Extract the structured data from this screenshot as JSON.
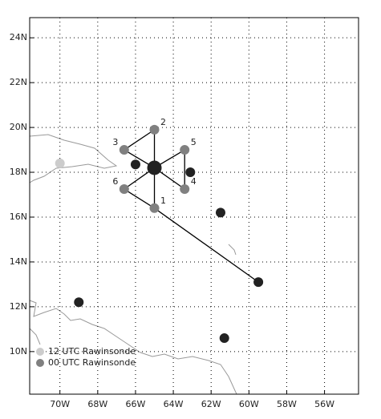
{
  "chart_data": {
    "type": "scatter",
    "xlim": [
      -71.6,
      -54.2
    ],
    "ylim": [
      8.1,
      24.9
    ],
    "xticks": [
      {
        "value": -70,
        "label": "70W"
      },
      {
        "value": -68,
        "label": "68W"
      },
      {
        "value": -66,
        "label": "66W"
      },
      {
        "value": -64,
        "label": "64W"
      },
      {
        "value": -62,
        "label": "62W"
      },
      {
        "value": -60,
        "label": "60W"
      },
      {
        "value": -58,
        "label": "58W"
      },
      {
        "value": -56,
        "label": "56W"
      }
    ],
    "yticks": [
      {
        "value": 10,
        "label": "10N"
      },
      {
        "value": 12,
        "label": "12N"
      },
      {
        "value": 14,
        "label": "14N"
      },
      {
        "value": 16,
        "label": "16N"
      },
      {
        "value": 18,
        "label": "18N"
      },
      {
        "value": 20,
        "label": "20N"
      },
      {
        "value": 22,
        "label": "22N"
      },
      {
        "value": 24,
        "label": "24N"
      }
    ],
    "grid": true,
    "legend": "lower left",
    "series": [
      {
        "name": "12 UTC Rawinsonde",
        "color": "#cccccc",
        "x": [
          -70.0
        ],
        "values": [
          18.4
        ]
      },
      {
        "name": "00 UTC Rawinsonde",
        "color": "#808080",
        "labels": [
          "1",
          "2",
          "3",
          "4",
          "5",
          "6"
        ],
        "x": [
          -65.0,
          -65.0,
          -66.6,
          -63.4,
          -63.4,
          -66.6
        ],
        "values": [
          16.4,
          19.9,
          19.0,
          17.25,
          19.0,
          17.25
        ]
      },
      {
        "color": "#222222",
        "x": [
          -65.0,
          -66.0,
          -63.1,
          -61.5,
          -59.5,
          -69.0,
          -61.3
        ],
        "values": [
          18.2,
          18.35,
          18.0,
          16.2,
          13.1,
          12.2,
          10.6
        ]
      }
    ]
  }
}
